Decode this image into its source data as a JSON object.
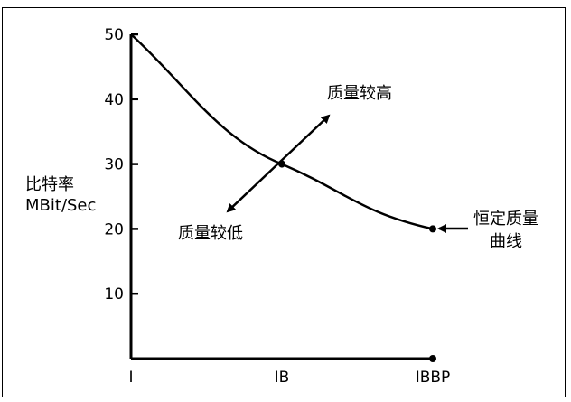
{
  "chart_data": {
    "type": "line",
    "title": "",
    "xlabel": "",
    "ylabel_lines": [
      "比特率",
      "MBit/Sec"
    ],
    "categories": [
      "I",
      "IB",
      "IBBP"
    ],
    "yticks": [
      10,
      20,
      30,
      40,
      50
    ],
    "ylim": [
      0,
      50
    ],
    "series": [
      {
        "values": [
          50,
          30,
          20
        ]
      }
    ],
    "annotations": {
      "higher_quality": "质量较高",
      "lower_quality": "质量较低",
      "curve_label_lines": [
        "恒定质量",
        "曲线"
      ]
    },
    "grid": false,
    "colors": {
      "line": "#000000",
      "background": "#ffffff"
    }
  }
}
